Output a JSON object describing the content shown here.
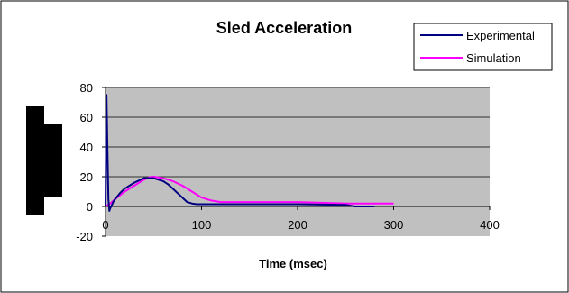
{
  "chart_data": {
    "type": "line",
    "title": "Sled Acceleration",
    "xlabel": "Time (msec)",
    "ylabel": "",
    "xlim": [
      0,
      400
    ],
    "ylim": [
      -20,
      80
    ],
    "x_ticks": [
      0,
      100,
      200,
      300,
      400
    ],
    "y_ticks": [
      -20,
      0,
      20,
      40,
      60,
      80
    ],
    "grid": "horizontal",
    "legend": "top-right",
    "plot_background": "#c0c0c0",
    "series": [
      {
        "name": "Experimental",
        "color": "#000080",
        "x": [
          0,
          1,
          2,
          3,
          4,
          5,
          6,
          8,
          10,
          15,
          20,
          30,
          40,
          50,
          55,
          60,
          65,
          70,
          75,
          80,
          85,
          90,
          95,
          100,
          110,
          120,
          150,
          200,
          250,
          260,
          280
        ],
        "y": [
          0,
          75,
          40,
          5,
          -3,
          -1,
          0,
          3,
          5,
          9,
          12,
          16,
          19,
          19,
          18,
          17,
          15,
          12,
          9,
          6,
          3,
          2,
          1.5,
          1.5,
          1.5,
          1.5,
          1.5,
          1.5,
          1,
          0,
          0
        ]
      },
      {
        "name": "Simulation",
        "color": "#ff00ff",
        "x": [
          0,
          5,
          10,
          20,
          30,
          40,
          45,
          50,
          55,
          60,
          70,
          80,
          90,
          100,
          110,
          120,
          150,
          200,
          250,
          300
        ],
        "y": [
          0,
          2,
          5,
          10,
          14,
          18,
          19.5,
          20,
          19.5,
          19,
          17,
          14,
          10,
          6,
          4,
          3,
          3,
          3,
          2,
          2
        ]
      }
    ]
  }
}
